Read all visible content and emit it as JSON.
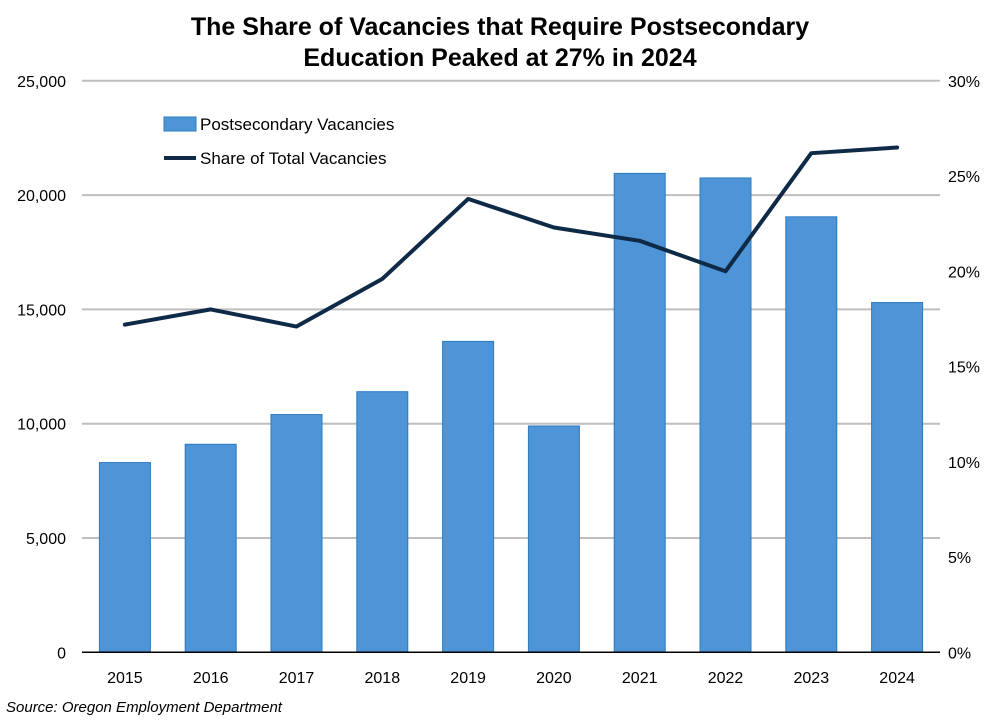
{
  "chart_data": {
    "type": "bar+line",
    "title_lines": [
      "The Share of Vacancies that Require Postsecondary",
      "Education Peaked at 27% in 2024"
    ],
    "source": "Source: Oregon Employment Department",
    "categories": [
      "2015",
      "2016",
      "2017",
      "2018",
      "2019",
      "2020",
      "2021",
      "2022",
      "2023",
      "2024"
    ],
    "series": [
      {
        "name": "Postsecondary Vacancies",
        "type": "bar",
        "axis": "left",
        "color": "#4F94D6",
        "values": [
          8300,
          9100,
          10400,
          11400,
          13600,
          9900,
          20950,
          20750,
          19050,
          15300
        ]
      },
      {
        "name": "Share of Total Vacancies",
        "type": "line",
        "axis": "right",
        "color": "#0E2A47",
        "values": [
          17.2,
          18.0,
          17.1,
          19.6,
          23.8,
          22.3,
          21.6,
          20.0,
          26.2,
          26.5
        ]
      }
    ],
    "left_axis": {
      "ylim": [
        0,
        25000
      ],
      "ticks": [
        "0",
        "5,000",
        "10,000",
        "15,000",
        "20,000",
        "25,000"
      ]
    },
    "right_axis": {
      "ylim": [
        0,
        30
      ],
      "ticks": [
        "0%",
        "5%",
        "10%",
        "15%",
        "20%",
        "25%",
        "30%"
      ]
    },
    "grid": true,
    "legend_position": "top-left"
  }
}
